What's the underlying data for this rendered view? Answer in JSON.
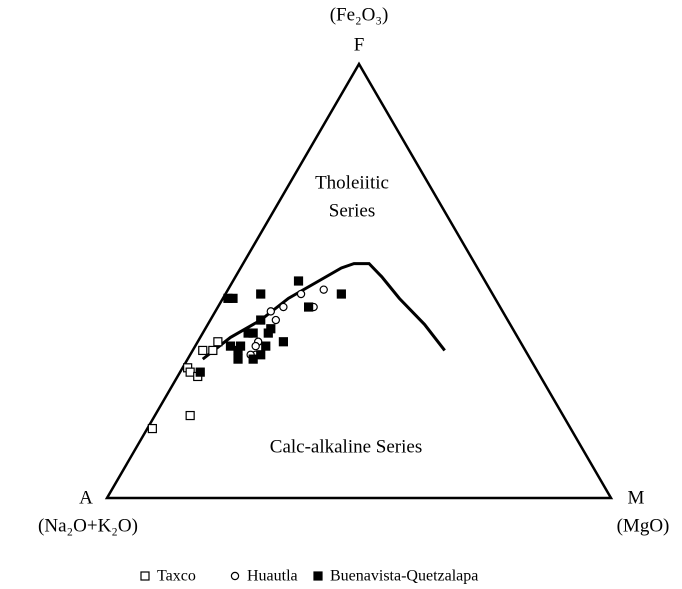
{
  "chart_data": {
    "type": "ternary",
    "vertices": [
      {
        "label": "A",
        "formula": "(Na₂O+K₂O)"
      },
      {
        "label": "F",
        "formula": "(Fe₂O₃)"
      },
      {
        "label": "M",
        "formula": "(MgO)"
      }
    ],
    "annotations": [
      {
        "lines": [
          "Tholeiitic",
          "Series"
        ]
      },
      {
        "lines": [
          "Calc-alkaline Series"
        ]
      }
    ],
    "boundary": [
      [
        65,
        32,
        3
      ],
      [
        57,
        37,
        6
      ],
      [
        49,
        41,
        10
      ],
      [
        41,
        46,
        13
      ],
      [
        33,
        50,
        17
      ],
      [
        27,
        53,
        20
      ],
      [
        24,
        54,
        22
      ],
      [
        21,
        54,
        25
      ],
      [
        20,
        51,
        29
      ],
      [
        19,
        46,
        35
      ],
      [
        17,
        40,
        43
      ],
      [
        16,
        34,
        50
      ]
    ],
    "series": [
      {
        "name": "Taxco",
        "marker": "square-open",
        "color": "#000000",
        "values": [
          [
            83,
            16,
            1
          ],
          [
            74,
            19,
            7
          ],
          [
            69,
            30,
            1
          ],
          [
            69,
            29,
            2
          ],
          [
            68,
            28,
            4
          ],
          [
            64,
            34,
            2
          ],
          [
            62,
            34,
            4
          ],
          [
            60,
            36,
            4
          ]
        ]
      },
      {
        "name": "Huautla",
        "marker": "circle-open",
        "color": "#000000",
        "values": [
          [
            33,
            48,
            19
          ],
          [
            38,
            47,
            15
          ],
          [
            37,
            44,
            19
          ],
          [
            43,
            44,
            13
          ],
          [
            46,
            43,
            11
          ],
          [
            46,
            41,
            13
          ],
          [
            52,
            36,
            12
          ],
          [
            53,
            35,
            12
          ],
          [
            54,
            33,
            13
          ],
          [
            55,
            33,
            12
          ]
        ]
      },
      {
        "name": "Buenavista-Quetzalapa",
        "marker": "square-filled",
        "color": "#000000",
        "values": [
          [
            53,
            46,
            1
          ],
          [
            46,
            47,
            7
          ],
          [
            52,
            46,
            2
          ],
          [
            37,
            50,
            13
          ],
          [
            30,
            47,
            23
          ],
          [
            38,
            44,
            18
          ],
          [
            49,
            41,
            10
          ],
          [
            48,
            39,
            13
          ],
          [
            52,
            38,
            10
          ],
          [
            49,
            38,
            13
          ],
          [
            53,
            38,
            9
          ],
          [
            56,
            35,
            9
          ],
          [
            57,
            34,
            9
          ],
          [
            58,
            35,
            7
          ],
          [
            53,
            33,
            14
          ],
          [
            47,
            36,
            17
          ],
          [
            55,
            32,
            13
          ],
          [
            58,
            32,
            10
          ],
          [
            51,
            35,
            14
          ],
          [
            67,
            29,
            4
          ]
        ]
      }
    ]
  }
}
